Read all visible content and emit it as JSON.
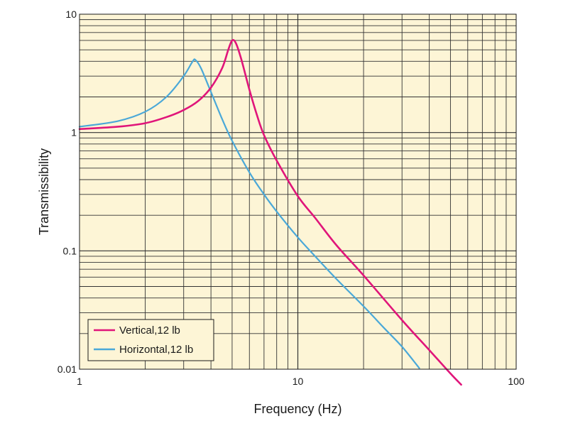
{
  "chart_data": {
    "type": "line",
    "title": "",
    "xlabel": "Frequency (Hz)",
    "ylabel": "Transmissibility",
    "xscale": "log",
    "yscale": "log",
    "xlim": [
      1,
      100
    ],
    "ylim": [
      0.01,
      10
    ],
    "x_tick_labels": [
      {
        "value": 1,
        "label": "1"
      },
      {
        "value": 10,
        "label": "10"
      },
      {
        "value": 100,
        "label": "100"
      }
    ],
    "y_tick_labels": [
      {
        "value": 0.01,
        "label": "0.01"
      },
      {
        "value": 0.1,
        "label": "0.1"
      },
      {
        "value": 1,
        "label": "1"
      },
      {
        "value": 10,
        "label": "10"
      }
    ],
    "grid": true,
    "legend_position": "bottom-left",
    "series": [
      {
        "name": "Vertical,12 lb",
        "color": "#e0157a",
        "x": [
          1,
          1.5,
          2,
          2.5,
          3,
          3.5,
          4,
          4.5,
          4.8,
          5,
          5.2,
          5.5,
          6,
          6.5,
          7,
          8,
          10,
          12,
          15,
          20,
          30,
          40,
          50,
          56
        ],
        "y": [
          1.07,
          1.12,
          1.2,
          1.35,
          1.55,
          1.85,
          2.4,
          3.5,
          5.0,
          6.0,
          5.7,
          4.2,
          2.3,
          1.4,
          0.95,
          0.58,
          0.29,
          0.19,
          0.112,
          0.062,
          0.026,
          0.0145,
          0.0092,
          0.0074
        ]
      },
      {
        "name": "Horizontal,12 lb",
        "color": "#4aa8d8",
        "x": [
          1,
          1.5,
          2,
          2.5,
          3,
          3.3,
          3.4,
          3.6,
          4,
          4.5,
          5,
          6,
          7,
          8,
          10,
          12,
          15,
          20,
          25,
          30,
          36
        ],
        "y": [
          1.12,
          1.25,
          1.5,
          2.0,
          3.0,
          4.0,
          4.1,
          3.5,
          2.2,
          1.3,
          0.85,
          0.46,
          0.3,
          0.215,
          0.13,
          0.09,
          0.058,
          0.034,
          0.022,
          0.0155,
          0.0102
        ]
      }
    ]
  }
}
